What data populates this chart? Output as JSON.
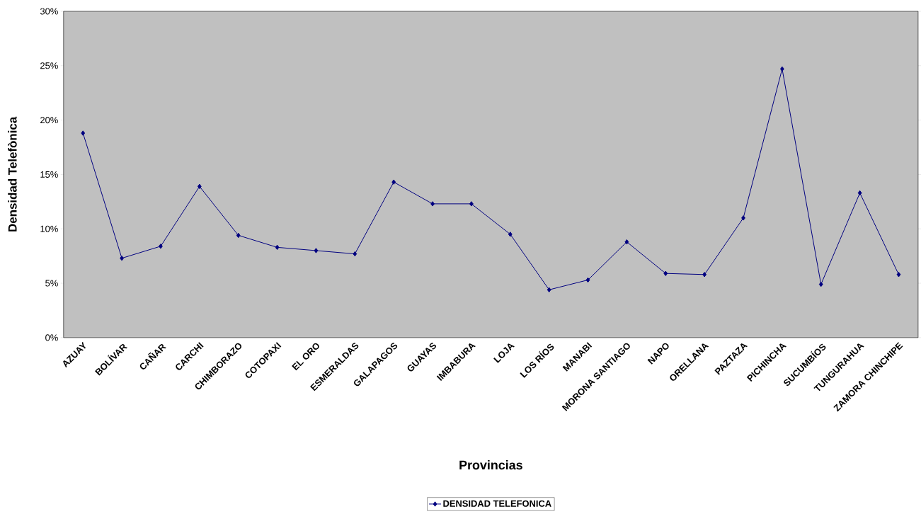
{
  "chart_data": {
    "type": "line",
    "xlabel": "Provincias",
    "ylabel": "Densidad Telefònica",
    "categories": [
      "AZUAY",
      "BOLÍVAR",
      "CAÑAR",
      "CARCHI",
      "CHIMBORAZO",
      "COTOPAXI",
      "EL ORO",
      "ESMERALDAS",
      "GALAPAGOS",
      "GUAYAS",
      "IMBABURA",
      "LOJA",
      "LOS RÍOS",
      "MANABI",
      "MORONA SANTIAGO",
      "NAPO",
      "ORELLANA",
      "PAZTAZA",
      "PICHINCHA",
      "SUCUMBÍOS",
      "TUNGURAHUA",
      "ZAMORA CHINCHIPE"
    ],
    "series": [
      {
        "name": "DENSIDAD TELEFONICA",
        "color": "#000080",
        "values": [
          18.8,
          7.3,
          8.4,
          13.9,
          9.4,
          8.3,
          8.0,
          7.7,
          14.3,
          12.3,
          12.3,
          9.5,
          4.4,
          5.3,
          8.8,
          5.9,
          5.8,
          11.0,
          24.7,
          4.9,
          13.3,
          5.8
        ]
      }
    ],
    "ylim": [
      0,
      30
    ],
    "yticks": [
      {
        "value": 0,
        "label": "0%"
      },
      {
        "value": 5,
        "label": "5%"
      },
      {
        "value": 10,
        "label": "10%"
      },
      {
        "value": 15,
        "label": "15%"
      },
      {
        "value": 20,
        "label": "20%"
      },
      {
        "value": 25,
        "label": "25%"
      },
      {
        "value": 30,
        "label": "30%"
      }
    ],
    "grid": false,
    "legend": "bottom",
    "marker": "diamond",
    "line_style": "solid"
  }
}
